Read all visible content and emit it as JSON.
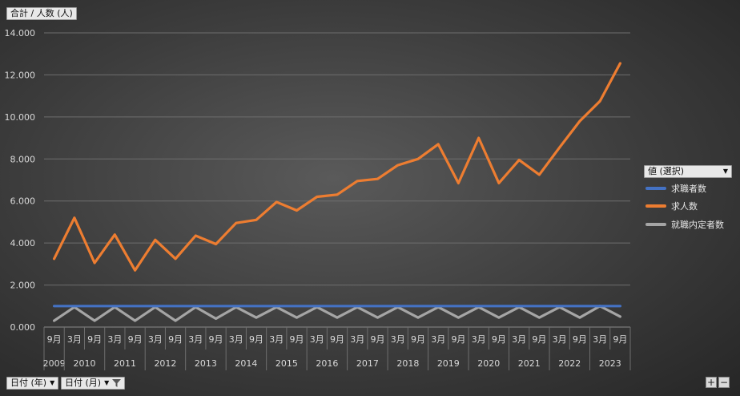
{
  "header": {
    "field_label": "合計 / 人数 (人)"
  },
  "legend": {
    "dropdown_label": "値 (選択)",
    "items": [
      {
        "label": "求職者数",
        "color": "#4472c4"
      },
      {
        "label": "求人数",
        "color": "#ed7d31"
      },
      {
        "label": "就職内定者数",
        "color": "#a5a5a5"
      }
    ]
  },
  "footer": {
    "field1_label": "日付 (年)",
    "field2_label": "日付 (月)",
    "plus": "+",
    "minus": "−"
  },
  "chart_data": {
    "type": "line",
    "title": "",
    "ylabel": "合計 / 人数 (人)",
    "ylim": [
      0,
      14000
    ],
    "yticks": [
      "0.000",
      "2.000",
      "4.000",
      "6.000",
      "8.000",
      "10.000",
      "12.000",
      "14.000"
    ],
    "ytick_values": [
      0,
      2000,
      4000,
      6000,
      8000,
      10000,
      12000,
      14000
    ],
    "month_labels": [
      "9月",
      "3月",
      "9月",
      "3月",
      "9月",
      "3月",
      "9月",
      "3月",
      "9月",
      "3月",
      "9月",
      "3月",
      "9月",
      "3月",
      "9月",
      "3月",
      "9月",
      "3月",
      "9月",
      "3月",
      "9月",
      "3月",
      "9月",
      "3月",
      "9月",
      "3月",
      "9月",
      "3月",
      "9月"
    ],
    "year_groups": [
      {
        "year": "2009",
        "count": 1
      },
      {
        "year": "2010",
        "count": 2
      },
      {
        "year": "2011",
        "count": 2
      },
      {
        "year": "2012",
        "count": 2
      },
      {
        "year": "2013",
        "count": 2
      },
      {
        "year": "2014",
        "count": 2
      },
      {
        "year": "2015",
        "count": 2
      },
      {
        "year": "2016",
        "count": 2
      },
      {
        "year": "2017",
        "count": 2
      },
      {
        "year": "2018",
        "count": 2
      },
      {
        "year": "2019",
        "count": 2
      },
      {
        "year": "2020",
        "count": 2
      },
      {
        "year": "2021",
        "count": 2
      },
      {
        "year": "2022",
        "count": 2
      },
      {
        "year": "2023",
        "count": 2
      }
    ],
    "series": [
      {
        "name": "求職者数",
        "color": "#4472c4",
        "values": [
          1000,
          1000,
          1000,
          1000,
          1000,
          1000,
          1000,
          1000,
          1000,
          1000,
          1000,
          1000,
          1000,
          1000,
          1000,
          1000,
          1000,
          1000,
          1000,
          1000,
          1000,
          1000,
          1000,
          1000,
          1000,
          1000,
          1000,
          1000,
          1000
        ]
      },
      {
        "name": "求人数",
        "color": "#ed7d31",
        "values": [
          3250,
          5200,
          3050,
          4400,
          2700,
          4150,
          3250,
          4350,
          3950,
          4950,
          5100,
          5950,
          5550,
          6200,
          6300,
          6950,
          7050,
          7700,
          8000,
          8700,
          6850,
          9000,
          6850,
          7950,
          7250,
          8550,
          9800,
          10750,
          12550
        ]
      },
      {
        "name": "就職内定者数",
        "color": "#a5a5a5",
        "values": [
          300,
          950,
          300,
          950,
          300,
          950,
          300,
          950,
          400,
          950,
          450,
          950,
          450,
          950,
          450,
          950,
          450,
          950,
          450,
          950,
          450,
          950,
          450,
          950,
          450,
          950,
          450,
          1000,
          500
        ]
      }
    ]
  }
}
